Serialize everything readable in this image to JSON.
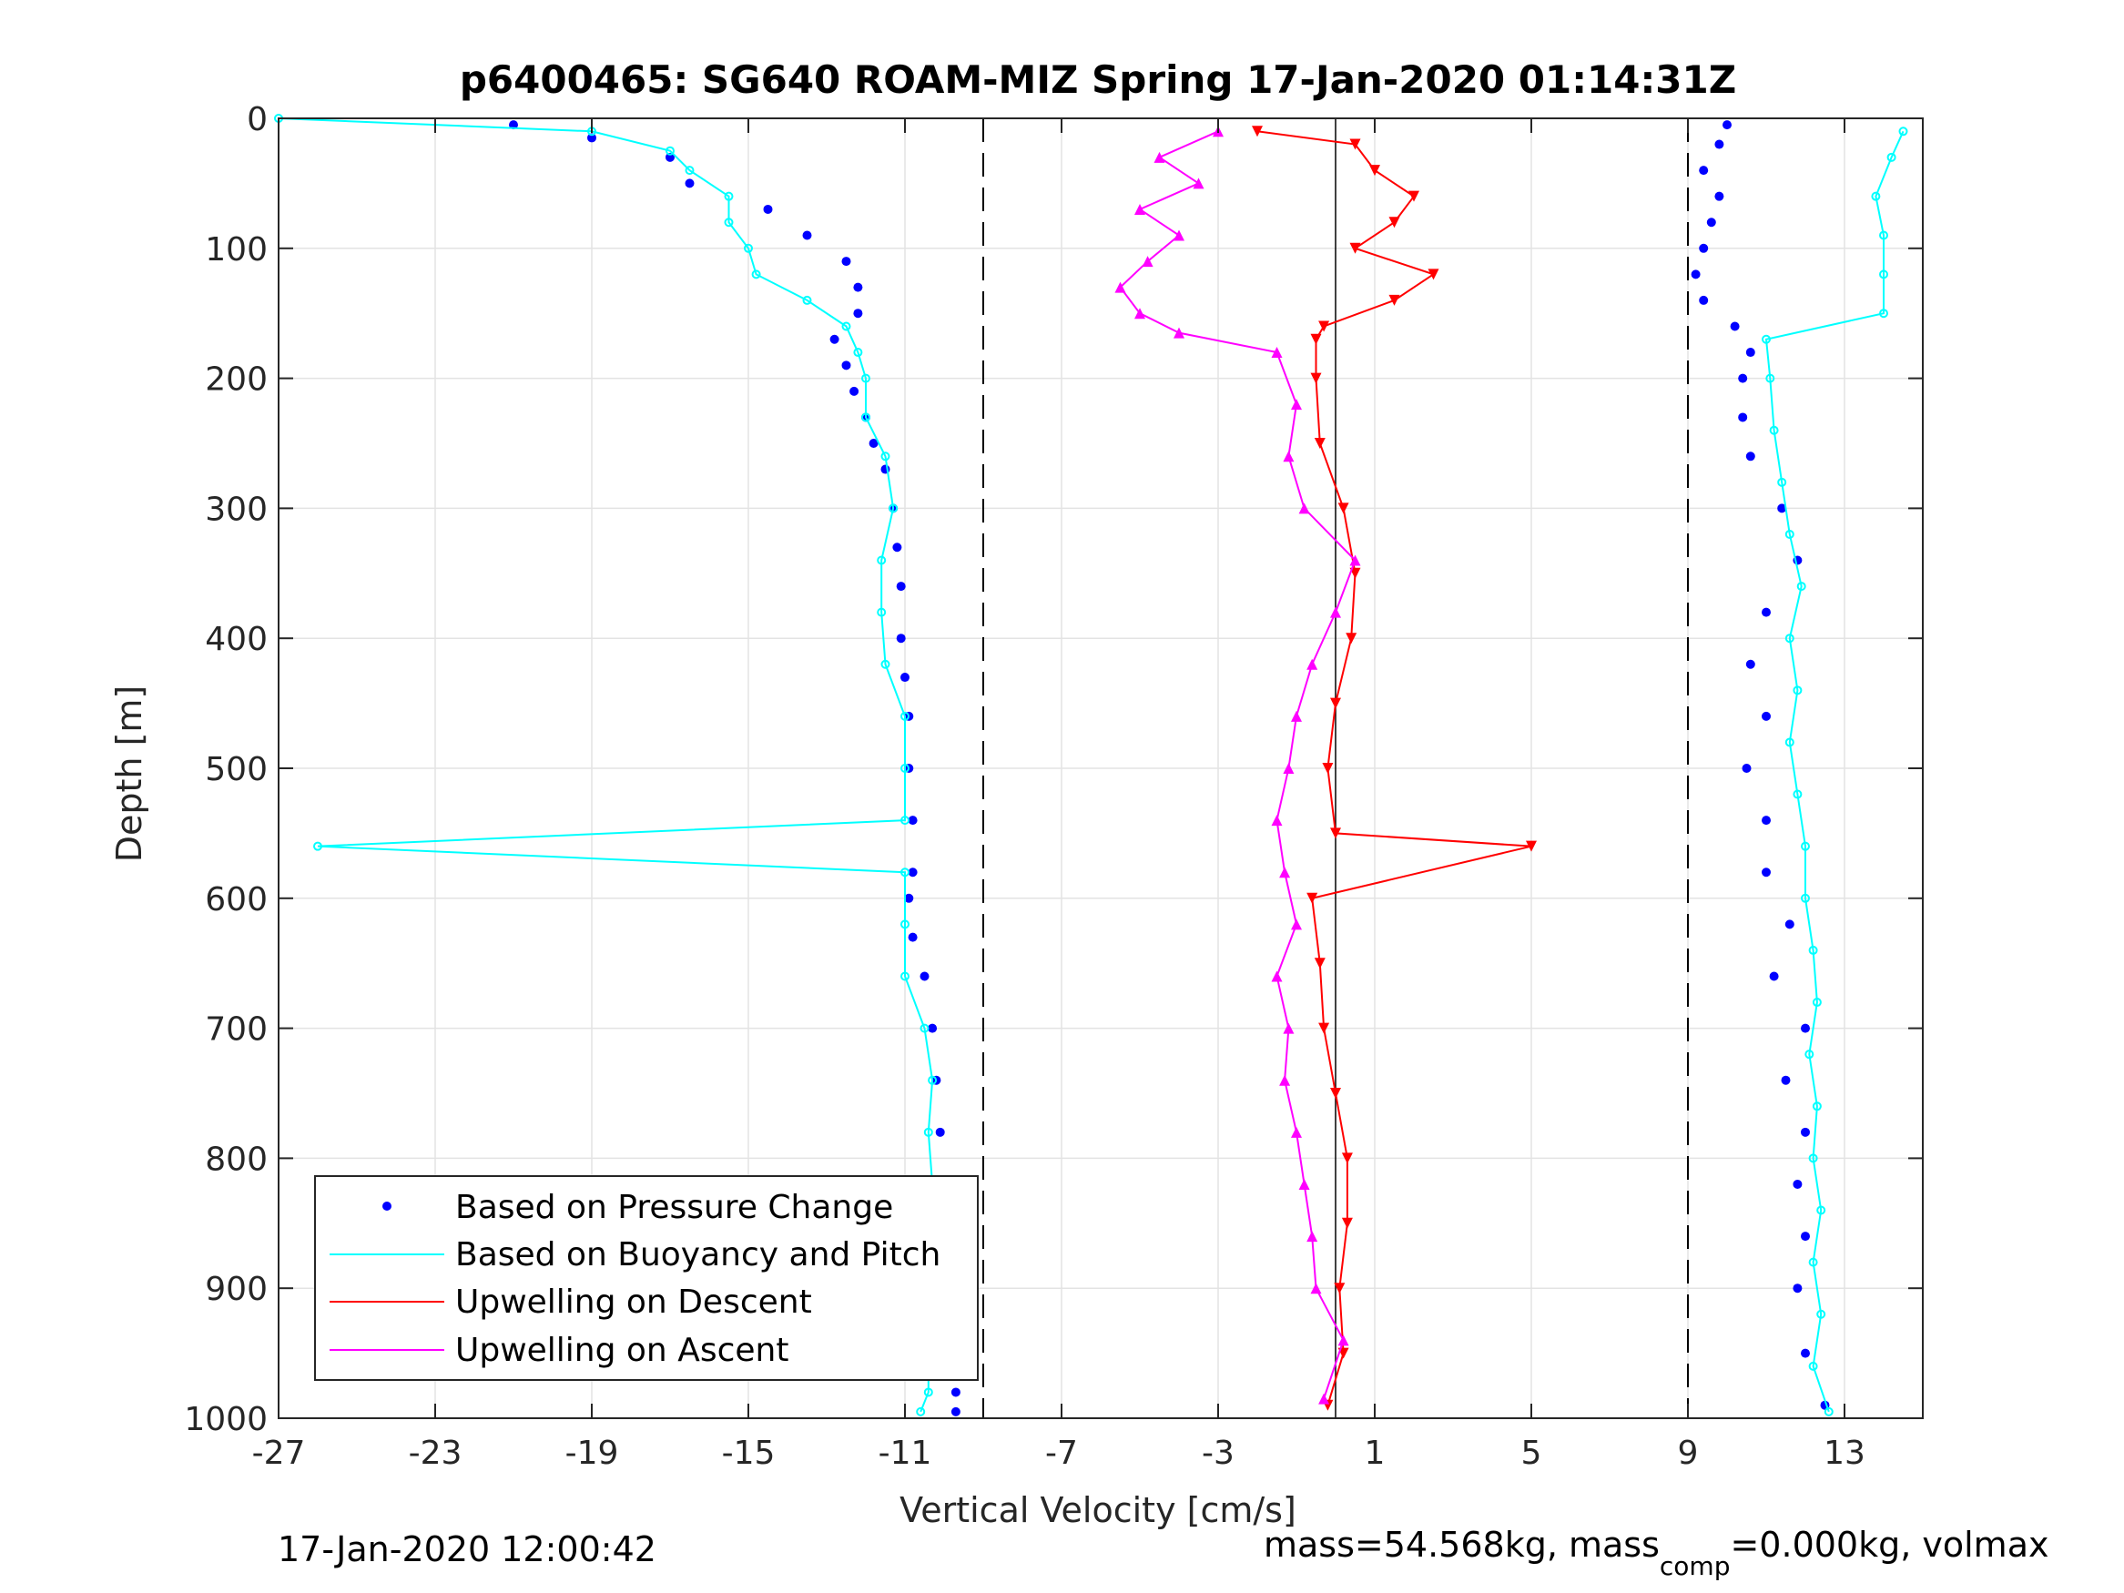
{
  "chart_data": {
    "type": "scatter",
    "title": "p6400465: SG640 ROAM-MIZ Spring 17-Jan-2020 01:14:31Z",
    "xlabel": "Vertical Velocity [cm/s]",
    "ylabel": "Depth [m]",
    "xlim": [
      -27,
      15
    ],
    "ylim": [
      0,
      1000
    ],
    "y_reversed": true,
    "grid": true,
    "x_ticks": [
      -27,
      -23,
      -19,
      -15,
      -11,
      -7,
      -3,
      1,
      5,
      9,
      13
    ],
    "y_ticks": [
      0,
      100,
      200,
      300,
      400,
      500,
      600,
      700,
      800,
      900,
      1000
    ],
    "x_tick_labels": [
      "-27",
      "-23",
      "-19",
      "-15",
      "-11",
      "-7",
      "-3",
      "1",
      "5",
      "9",
      "13"
    ],
    "y_tick_labels": [
      "0",
      "100",
      "200",
      "300",
      "400",
      "500",
      "600",
      "700",
      "800",
      "900",
      "1000"
    ],
    "reference_lines": {
      "dashed_x": [
        -9,
        9
      ],
      "solid_x": [
        0
      ]
    },
    "legend": {
      "placement": "bottom-left",
      "entries": [
        {
          "label": "Based on Pressure Change",
          "color": "#0000ff",
          "style": "dots"
        },
        {
          "label": "Based on Buoyancy and Pitch",
          "color": "#00ffff",
          "style": "line"
        },
        {
          "label": "Upwelling on Descent",
          "color": "#ff0000",
          "style": "line"
        },
        {
          "label": "Upwelling on Ascent",
          "color": "#ff00ff",
          "style": "line"
        }
      ]
    },
    "series": [
      {
        "name": "Based on Pressure Change",
        "color": "#0000ff",
        "profile": "descent",
        "depth": [
          5,
          15,
          30,
          50,
          70,
          90,
          110,
          130,
          150,
          170,
          190,
          210,
          230,
          250,
          270,
          300,
          330,
          360,
          400,
          430,
          460,
          500,
          540,
          580,
          600,
          630,
          660,
          700,
          740,
          780,
          820,
          860,
          900,
          940,
          980,
          995
        ],
        "velocity": [
          -21,
          -19,
          -17,
          -16.5,
          -14.5,
          -13.5,
          -12.5,
          -12.2,
          -12.2,
          -12.8,
          -12.5,
          -12.3,
          -12,
          -11.8,
          -11.5,
          -11.3,
          -11.2,
          -11.1,
          -11.1,
          -11,
          -10.9,
          -10.9,
          -10.8,
          -10.8,
          -10.9,
          -10.8,
          -10.5,
          -10.3,
          -10.2,
          -10.1,
          -10,
          -10,
          -9.9,
          -9.8,
          -9.7,
          -9.7
        ]
      },
      {
        "name": "Based on Buoyancy and Pitch",
        "color": "#00ffff",
        "profile": "descent",
        "depth": [
          0,
          10,
          25,
          40,
          60,
          80,
          100,
          120,
          140,
          160,
          180,
          200,
          230,
          260,
          300,
          340,
          380,
          420,
          460,
          500,
          540,
          560,
          580,
          620,
          660,
          700,
          740,
          780,
          820,
          860,
          900,
          940,
          980,
          995
        ],
        "velocity": [
          -27,
          -19,
          -17,
          -16.5,
          -15.5,
          -15.5,
          -15,
          -14.8,
          -13.5,
          -12.5,
          -12.2,
          -12,
          -12,
          -11.5,
          -11.3,
          -11.6,
          -11.6,
          -11.5,
          -11,
          -11,
          -11,
          -26,
          -11,
          -11,
          -11,
          -10.5,
          -10.3,
          -10.4,
          -10.3,
          -10.6,
          -10.5,
          -10.4,
          -10.4,
          -10.6
        ]
      },
      {
        "name": "Based on Pressure Change",
        "color": "#0000ff",
        "profile": "ascent",
        "depth": [
          990,
          950,
          900,
          860,
          820,
          780,
          740,
          700,
          660,
          620,
          580,
          540,
          500,
          460,
          420,
          380,
          340,
          300,
          260,
          230,
          200,
          180,
          160,
          140,
          120,
          100,
          80,
          60,
          40,
          20,
          5
        ],
        "velocity": [
          12.5,
          12,
          11.8,
          12,
          11.8,
          12,
          11.5,
          12,
          11.2,
          11.6,
          11,
          11,
          10.5,
          11,
          10.6,
          11,
          11.8,
          11.4,
          10.6,
          10.4,
          10.4,
          10.6,
          10.2,
          9.4,
          9.2,
          9.4,
          9.6,
          9.8,
          9.4,
          9.8,
          10
        ]
      },
      {
        "name": "Based on Buoyancy and Pitch",
        "color": "#00ffff",
        "profile": "ascent",
        "depth": [
          995,
          960,
          920,
          880,
          840,
          800,
          760,
          720,
          680,
          640,
          600,
          560,
          520,
          480,
          440,
          400,
          360,
          320,
          280,
          240,
          200,
          170,
          150,
          120,
          90,
          60,
          30,
          10
        ],
        "velocity": [
          12.6,
          12.2,
          12.4,
          12.2,
          12.4,
          12.2,
          12.3,
          12.1,
          12.3,
          12.2,
          12,
          12,
          11.8,
          11.6,
          11.8,
          11.6,
          11.9,
          11.6,
          11.4,
          11.2,
          11.1,
          11,
          14,
          14,
          14,
          13.8,
          14.2,
          14.5
        ]
      },
      {
        "name": "Upwelling on Descent",
        "color": "#ff0000",
        "depth": [
          10,
          20,
          40,
          60,
          80,
          100,
          120,
          140,
          160,
          170,
          200,
          250,
          300,
          350,
          400,
          450,
          500,
          550,
          560,
          600,
          650,
          700,
          750,
          800,
          850,
          900,
          950,
          990
        ],
        "velocity": [
          -2,
          0.5,
          1,
          2,
          1.5,
          0.5,
          2.5,
          1.5,
          -0.3,
          -0.5,
          -0.5,
          -0.4,
          0.2,
          0.5,
          0.4,
          0,
          -0.2,
          0,
          5,
          -0.6,
          -0.4,
          -0.3,
          0,
          0.3,
          0.3,
          0.1,
          0.2,
          -0.2
        ]
      },
      {
        "name": "Upwelling on Ascent",
        "color": "#ff00ff",
        "depth": [
          10,
          30,
          50,
          70,
          90,
          110,
          130,
          150,
          165,
          180,
          220,
          260,
          300,
          340,
          380,
          420,
          460,
          500,
          540,
          580,
          620,
          660,
          700,
          740,
          780,
          820,
          860,
          900,
          940,
          985
        ],
        "velocity": [
          -3,
          -4.5,
          -3.5,
          -5,
          -4,
          -4.8,
          -5.5,
          -5,
          -4,
          -1.5,
          -1,
          -1.2,
          -0.8,
          0.5,
          0,
          -0.6,
          -1,
          -1.2,
          -1.5,
          -1.3,
          -1,
          -1.5,
          -1.2,
          -1.3,
          -1,
          -0.8,
          -0.6,
          -0.5,
          0.2,
          -0.3
        ]
      }
    ],
    "annotations": {
      "first_axis": "Based on Pressure Change",
      "second_axis": "Based on Buoyancy and Pitch",
      "stall_markers": "triangles"
    }
  },
  "footer": {
    "datestamp": "17-Jan-2020 12:00:42",
    "mass_text": "mass=54.568kg, mass",
    "mass_sub": "comp",
    "mass_tail": "=0.000kg, volmax"
  }
}
